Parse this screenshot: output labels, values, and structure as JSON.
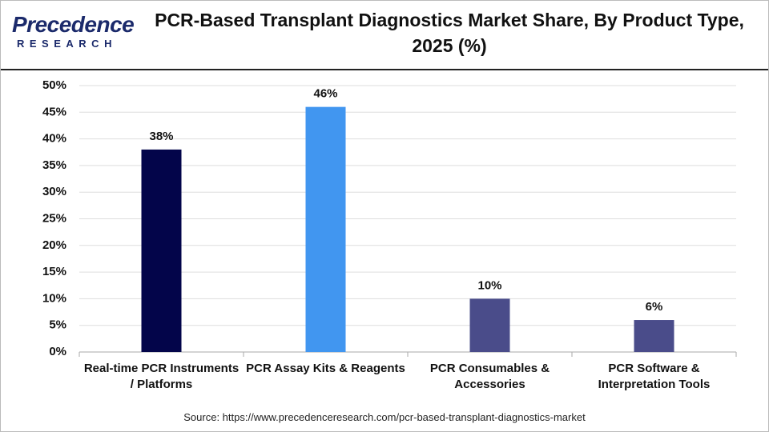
{
  "logo": {
    "name": "Precedence",
    "sub": "RESEARCH"
  },
  "chart_data": {
    "type": "bar",
    "title": "PCR-Based Transplant Diagnostics Market Share, By Product Type, 2025 (%)",
    "categories": [
      "Real-time PCR Instruments / Platforms",
      "PCR Assay Kits & Reagents",
      "PCR Consumables & Accessories",
      "PCR Software & Interpretation Tools"
    ],
    "values": [
      38,
      46,
      10,
      6
    ],
    "value_labels": [
      "38%",
      "46%",
      "10%",
      "6%"
    ],
    "colors": [
      "#03054a",
      "#4196f0",
      "#4a4c8a",
      "#4a4c8a"
    ],
    "ylim": [
      0,
      50
    ],
    "yticks": [
      {
        "value": 0,
        "label": "0%"
      },
      {
        "value": 5,
        "label": "5%"
      },
      {
        "value": 10,
        "label": "10%"
      },
      {
        "value": 15,
        "label": "15%"
      },
      {
        "value": 20,
        "label": "20%"
      },
      {
        "value": 25,
        "label": "25%"
      },
      {
        "value": 30,
        "label": "30%"
      },
      {
        "value": 35,
        "label": "35%"
      },
      {
        "value": 40,
        "label": "40%"
      },
      {
        "value": 45,
        "label": "45%"
      },
      {
        "value": 50,
        "label": "50%"
      }
    ],
    "grid": true,
    "source": "Source: https://www.precedenceresearch.com/pcr-based-transplant-diagnostics-market"
  }
}
